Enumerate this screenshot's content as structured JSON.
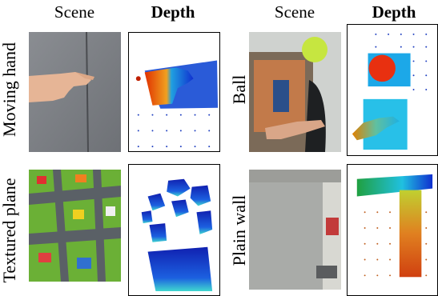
{
  "headers": {
    "scene_left": "Scene",
    "depth_left": "Depth",
    "scene_right": "Scene",
    "depth_right": "Depth"
  },
  "row_labels": {
    "moving_hand": "Moving hand",
    "ball": "Ball",
    "textured_plane": "Textured plane",
    "plain_wall": "Plain wall"
  },
  "colors": {
    "depth_near": "#e03000",
    "depth_mid": "#f0a020",
    "depth_far": "#1030d0",
    "dot": "#2040c0"
  }
}
